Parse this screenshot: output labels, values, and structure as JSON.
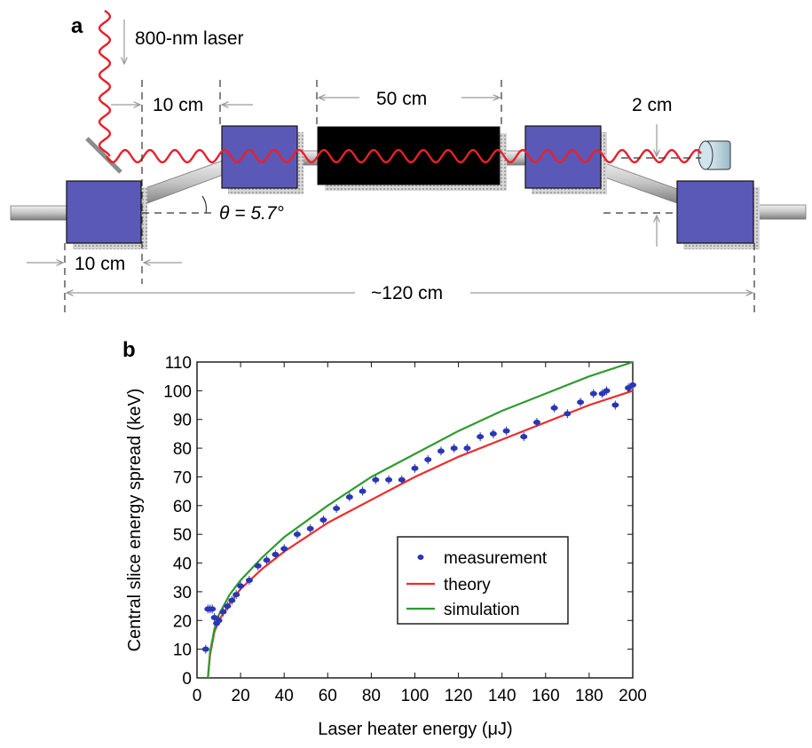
{
  "panel_a": {
    "label": "a",
    "laser_label": "800-nm laser",
    "dim_10cm_top": "10 cm",
    "dim_50cm": "50 cm",
    "dim_2cm": "2 cm",
    "angle_label": "θ = 5.7°",
    "dim_10cm_bottom": "10 cm",
    "total_length": "~120 cm",
    "colors": {
      "magnet": "#5a59b8",
      "laser": "#e8202a",
      "undulator": "#000000",
      "pipe": "#b9b9b9"
    }
  },
  "panel_b": {
    "label": "b"
  },
  "chart_data": {
    "type": "scatter",
    "xlabel": "Laser heater energy (μJ)",
    "ylabel": "Central slice energy spread (keV)",
    "xlim": [
      0,
      200
    ],
    "ylim": [
      0,
      110
    ],
    "xticks": [
      0,
      20,
      40,
      60,
      80,
      100,
      120,
      140,
      160,
      180,
      200
    ],
    "yticks": [
      0,
      10,
      20,
      30,
      40,
      50,
      60,
      70,
      80,
      90,
      100,
      110
    ],
    "legend_position": "lower-right",
    "series": [
      {
        "name": "measurement",
        "kind": "points",
        "color": "#2a36b3",
        "x": [
          4,
          5,
          6,
          7,
          8,
          9,
          10,
          12,
          14,
          16,
          18,
          20,
          24,
          28,
          32,
          36,
          40,
          46,
          52,
          58,
          64,
          70,
          76,
          82,
          88,
          94,
          100,
          106,
          112,
          118,
          124,
          130,
          136,
          142,
          150,
          156,
          164,
          170,
          176,
          182,
          186,
          188,
          192,
          198,
          200
        ],
        "y": [
          10,
          24,
          24,
          24,
          21,
          19,
          20,
          23,
          25,
          27,
          29,
          32,
          34,
          39,
          41,
          43,
          45,
          50,
          52,
          55,
          59,
          63,
          65,
          69,
          69,
          69,
          73,
          76,
          79,
          80,
          80,
          84,
          85,
          86,
          84,
          89,
          94,
          92,
          96,
          99,
          99,
          100,
          95,
          101,
          102
        ]
      },
      {
        "name": "theory",
        "kind": "line",
        "color": "#ee2b2b",
        "x": [
          5,
          6,
          8,
          10,
          15,
          20,
          30,
          40,
          60,
          80,
          100,
          120,
          140,
          160,
          180,
          200
        ],
        "y": [
          0,
          8,
          16,
          20,
          26,
          31,
          38,
          44,
          54,
          62,
          70,
          77,
          83,
          89,
          95,
          100
        ]
      },
      {
        "name": "simulation",
        "kind": "line",
        "color": "#2f9b2f",
        "x": [
          5,
          6,
          8,
          10,
          15,
          20,
          30,
          40,
          60,
          80,
          100,
          120,
          140,
          160,
          180,
          200
        ],
        "y": [
          0,
          9,
          17,
          22,
          29,
          34,
          42,
          49,
          60,
          70,
          78,
          86,
          93,
          99,
          105,
          110
        ]
      }
    ]
  }
}
